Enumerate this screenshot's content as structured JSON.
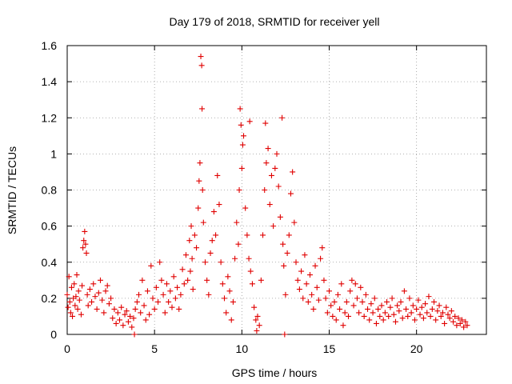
{
  "chart_data": {
    "type": "scatter",
    "title": "Day 179 of 2018, SRMTID for receiver yell",
    "xlabel": "GPS time / hours",
    "ylabel": "SRMTID / TECUs",
    "xlim": [
      0,
      24
    ],
    "ylim": [
      0,
      1.6
    ],
    "xticks": [
      0,
      5,
      10,
      15,
      20
    ],
    "xtick_labels": [
      "0",
      "5",
      "10",
      "15",
      "20"
    ],
    "yticks": [
      0,
      0.2,
      0.4,
      0.6,
      0.8,
      1.0,
      1.2,
      1.4,
      1.6
    ],
    "ytick_labels": [
      "0",
      "0.2",
      "0.4",
      "0.6",
      "0.8",
      "1",
      "1.2",
      "1.4",
      "1.6"
    ],
    "grid": true,
    "marker": "+",
    "color": "#e00000",
    "series": [
      {
        "name": "SRMTID",
        "points": [
          [
            0.0,
            0.22
          ],
          [
            0.05,
            0.15
          ],
          [
            0.1,
            0.32
          ],
          [
            0.15,
            0.18
          ],
          [
            0.2,
            0.12
          ],
          [
            0.25,
            0.26
          ],
          [
            0.3,
            0.1
          ],
          [
            0.35,
            0.2
          ],
          [
            0.4,
            0.28
          ],
          [
            0.45,
            0.16
          ],
          [
            0.5,
            0.21
          ],
          [
            0.55,
            0.33
          ],
          [
            0.6,
            0.14
          ],
          [
            0.65,
            0.24
          ],
          [
            0.7,
            0.19
          ],
          [
            0.8,
            0.11
          ],
          [
            0.85,
            0.27
          ],
          [
            0.9,
            0.48
          ],
          [
            0.95,
            0.52
          ],
          [
            1.0,
            0.57
          ],
          [
            1.05,
            0.5
          ],
          [
            1.1,
            0.45
          ],
          [
            1.15,
            0.22
          ],
          [
            1.2,
            0.16
          ],
          [
            1.3,
            0.25
          ],
          [
            1.4,
            0.18
          ],
          [
            1.5,
            0.28
          ],
          [
            1.6,
            0.21
          ],
          [
            1.7,
            0.14
          ],
          [
            1.8,
            0.23
          ],
          [
            1.9,
            0.3
          ],
          [
            2.0,
            0.19
          ],
          [
            2.1,
            0.12
          ],
          [
            2.2,
            0.24
          ],
          [
            2.3,
            0.27
          ],
          [
            2.4,
            0.17
          ],
          [
            2.5,
            0.2
          ],
          [
            2.6,
            0.09
          ],
          [
            2.7,
            0.14
          ],
          [
            2.8,
            0.06
          ],
          [
            2.9,
            0.12
          ],
          [
            3.0,
            0.08
          ],
          [
            3.1,
            0.15
          ],
          [
            3.2,
            0.05
          ],
          [
            3.3,
            0.11
          ],
          [
            3.4,
            0.13
          ],
          [
            3.5,
            0.07
          ],
          [
            3.6,
            0.1
          ],
          [
            3.7,
            0.04
          ],
          [
            3.8,
            0.09
          ],
          [
            3.85,
            0.0
          ],
          [
            3.9,
            0.14
          ],
          [
            4.0,
            0.18
          ],
          [
            4.1,
            0.22
          ],
          [
            4.2,
            0.12
          ],
          [
            4.3,
            0.3
          ],
          [
            4.4,
            0.16
          ],
          [
            4.5,
            0.08
          ],
          [
            4.6,
            0.24
          ],
          [
            4.7,
            0.11
          ],
          [
            4.8,
            0.38
          ],
          [
            4.9,
            0.2
          ],
          [
            5.0,
            0.14
          ],
          [
            5.1,
            0.26
          ],
          [
            5.2,
            0.18
          ],
          [
            5.3,
            0.4
          ],
          [
            5.4,
            0.3
          ],
          [
            5.5,
            0.22
          ],
          [
            5.6,
            0.12
          ],
          [
            5.7,
            0.28
          ],
          [
            5.8,
            0.18
          ],
          [
            5.9,
            0.24
          ],
          [
            6.0,
            0.15
          ],
          [
            6.1,
            0.32
          ],
          [
            6.2,
            0.2
          ],
          [
            6.3,
            0.26
          ],
          [
            6.4,
            0.14
          ],
          [
            6.5,
            0.22
          ],
          [
            6.6,
            0.36
          ],
          [
            6.7,
            0.28
          ],
          [
            6.8,
            0.44
          ],
          [
            6.9,
            0.3
          ],
          [
            7.0,
            0.52
          ],
          [
            7.05,
            0.35
          ],
          [
            7.1,
            0.6
          ],
          [
            7.15,
            0.42
          ],
          [
            7.2,
            0.25
          ],
          [
            7.3,
            0.55
          ],
          [
            7.4,
            0.48
          ],
          [
            7.5,
            0.7
          ],
          [
            7.55,
            0.85
          ],
          [
            7.6,
            0.95
          ],
          [
            7.65,
            1.54
          ],
          [
            7.7,
            1.49
          ],
          [
            7.72,
            1.25
          ],
          [
            7.75,
            0.8
          ],
          [
            7.8,
            0.62
          ],
          [
            7.9,
            0.4
          ],
          [
            8.0,
            0.3
          ],
          [
            8.1,
            0.22
          ],
          [
            8.2,
            0.45
          ],
          [
            8.3,
            0.52
          ],
          [
            8.4,
            0.68
          ],
          [
            8.5,
            0.55
          ],
          [
            8.6,
            0.88
          ],
          [
            8.7,
            0.72
          ],
          [
            8.8,
            0.4
          ],
          [
            8.9,
            0.28
          ],
          [
            9.0,
            0.2
          ],
          [
            9.1,
            0.12
          ],
          [
            9.2,
            0.32
          ],
          [
            9.3,
            0.24
          ],
          [
            9.4,
            0.08
          ],
          [
            9.5,
            0.18
          ],
          [
            9.6,
            0.42
          ],
          [
            9.7,
            0.62
          ],
          [
            9.8,
            0.5
          ],
          [
            9.85,
            0.8
          ],
          [
            9.9,
            1.25
          ],
          [
            9.95,
            1.16
          ],
          [
            10.0,
            0.92
          ],
          [
            10.05,
            1.05
          ],
          [
            10.1,
            1.1
          ],
          [
            10.2,
            0.7
          ],
          [
            10.3,
            0.55
          ],
          [
            10.4,
            0.42
          ],
          [
            10.45,
            1.18
          ],
          [
            10.5,
            0.35
          ],
          [
            10.6,
            0.28
          ],
          [
            10.7,
            0.15
          ],
          [
            10.8,
            0.08
          ],
          [
            10.85,
            0.02
          ],
          [
            10.9,
            0.1
          ],
          [
            11.0,
            0.05
          ],
          [
            11.1,
            0.3
          ],
          [
            11.2,
            0.55
          ],
          [
            11.3,
            0.8
          ],
          [
            11.35,
            1.17
          ],
          [
            11.4,
            0.95
          ],
          [
            11.5,
            1.03
          ],
          [
            11.6,
            0.72
          ],
          [
            11.7,
            0.88
          ],
          [
            11.8,
            0.6
          ],
          [
            11.9,
            0.92
          ],
          [
            12.0,
            1.0
          ],
          [
            12.1,
            0.82
          ],
          [
            12.2,
            0.65
          ],
          [
            12.3,
            1.2
          ],
          [
            12.35,
            0.5
          ],
          [
            12.4,
            0.38
          ],
          [
            12.45,
            0.0
          ],
          [
            12.5,
            0.22
          ],
          [
            12.6,
            0.45
          ],
          [
            12.7,
            0.55
          ],
          [
            12.8,
            0.78
          ],
          [
            12.9,
            0.9
          ],
          [
            13.0,
            0.62
          ],
          [
            13.1,
            0.4
          ],
          [
            13.2,
            0.3
          ],
          [
            13.3,
            0.25
          ],
          [
            13.4,
            0.35
          ],
          [
            13.5,
            0.2
          ],
          [
            13.6,
            0.44
          ],
          [
            13.7,
            0.28
          ],
          [
            13.8,
            0.18
          ],
          [
            13.9,
            0.33
          ],
          [
            14.0,
            0.22
          ],
          [
            14.1,
            0.14
          ],
          [
            14.2,
            0.38
          ],
          [
            14.3,
            0.26
          ],
          [
            14.4,
            0.19
          ],
          [
            14.5,
            0.42
          ],
          [
            14.6,
            0.48
          ],
          [
            14.7,
            0.3
          ],
          [
            14.8,
            0.2
          ],
          [
            14.9,
            0.12
          ],
          [
            15.0,
            0.24
          ],
          [
            15.1,
            0.16
          ],
          [
            15.2,
            0.1
          ],
          [
            15.3,
            0.18
          ],
          [
            15.4,
            0.08
          ],
          [
            15.5,
            0.22
          ],
          [
            15.6,
            0.14
          ],
          [
            15.7,
            0.28
          ],
          [
            15.8,
            0.05
          ],
          [
            15.9,
            0.12
          ],
          [
            16.0,
            0.18
          ],
          [
            16.1,
            0.1
          ],
          [
            16.2,
            0.24
          ],
          [
            16.3,
            0.3
          ],
          [
            16.4,
            0.16
          ],
          [
            16.5,
            0.28
          ],
          [
            16.6,
            0.2
          ],
          [
            16.7,
            0.12
          ],
          [
            16.8,
            0.26
          ],
          [
            16.9,
            0.18
          ],
          [
            17.0,
            0.1
          ],
          [
            17.1,
            0.22
          ],
          [
            17.2,
            0.14
          ],
          [
            17.3,
            0.08
          ],
          [
            17.4,
            0.17
          ],
          [
            17.5,
            0.12
          ],
          [
            17.6,
            0.2
          ],
          [
            17.7,
            0.06
          ],
          [
            17.8,
            0.14
          ],
          [
            17.9,
            0.1
          ],
          [
            18.0,
            0.16
          ],
          [
            18.1,
            0.08
          ],
          [
            18.2,
            0.12
          ],
          [
            18.3,
            0.18
          ],
          [
            18.4,
            0.1
          ],
          [
            18.5,
            0.15
          ],
          [
            18.6,
            0.2
          ],
          [
            18.7,
            0.11
          ],
          [
            18.8,
            0.07
          ],
          [
            18.9,
            0.16
          ],
          [
            19.0,
            0.13
          ],
          [
            19.1,
            0.18
          ],
          [
            19.2,
            0.09
          ],
          [
            19.3,
            0.24
          ],
          [
            19.4,
            0.14
          ],
          [
            19.5,
            0.1
          ],
          [
            19.6,
            0.2
          ],
          [
            19.7,
            0.12
          ],
          [
            19.8,
            0.16
          ],
          [
            19.9,
            0.08
          ],
          [
            20.0,
            0.14
          ],
          [
            20.1,
            0.19
          ],
          [
            20.2,
            0.11
          ],
          [
            20.3,
            0.15
          ],
          [
            20.4,
            0.09
          ],
          [
            20.5,
            0.17
          ],
          [
            20.6,
            0.12
          ],
          [
            20.7,
            0.21
          ],
          [
            20.8,
            0.1
          ],
          [
            20.9,
            0.14
          ],
          [
            21.0,
            0.18
          ],
          [
            21.1,
            0.08
          ],
          [
            21.2,
            0.13
          ],
          [
            21.3,
            0.16
          ],
          [
            21.4,
            0.1
          ],
          [
            21.5,
            0.12
          ],
          [
            21.6,
            0.06
          ],
          [
            21.7,
            0.15
          ],
          [
            21.8,
            0.11
          ],
          [
            21.9,
            0.09
          ],
          [
            22.0,
            0.13
          ],
          [
            22.1,
            0.07
          ],
          [
            22.2,
            0.1
          ],
          [
            22.3,
            0.05
          ],
          [
            22.4,
            0.09
          ],
          [
            22.5,
            0.06
          ],
          [
            22.6,
            0.08
          ],
          [
            22.7,
            0.04
          ],
          [
            22.8,
            0.07
          ],
          [
            22.9,
            0.05
          ]
        ]
      }
    ]
  }
}
